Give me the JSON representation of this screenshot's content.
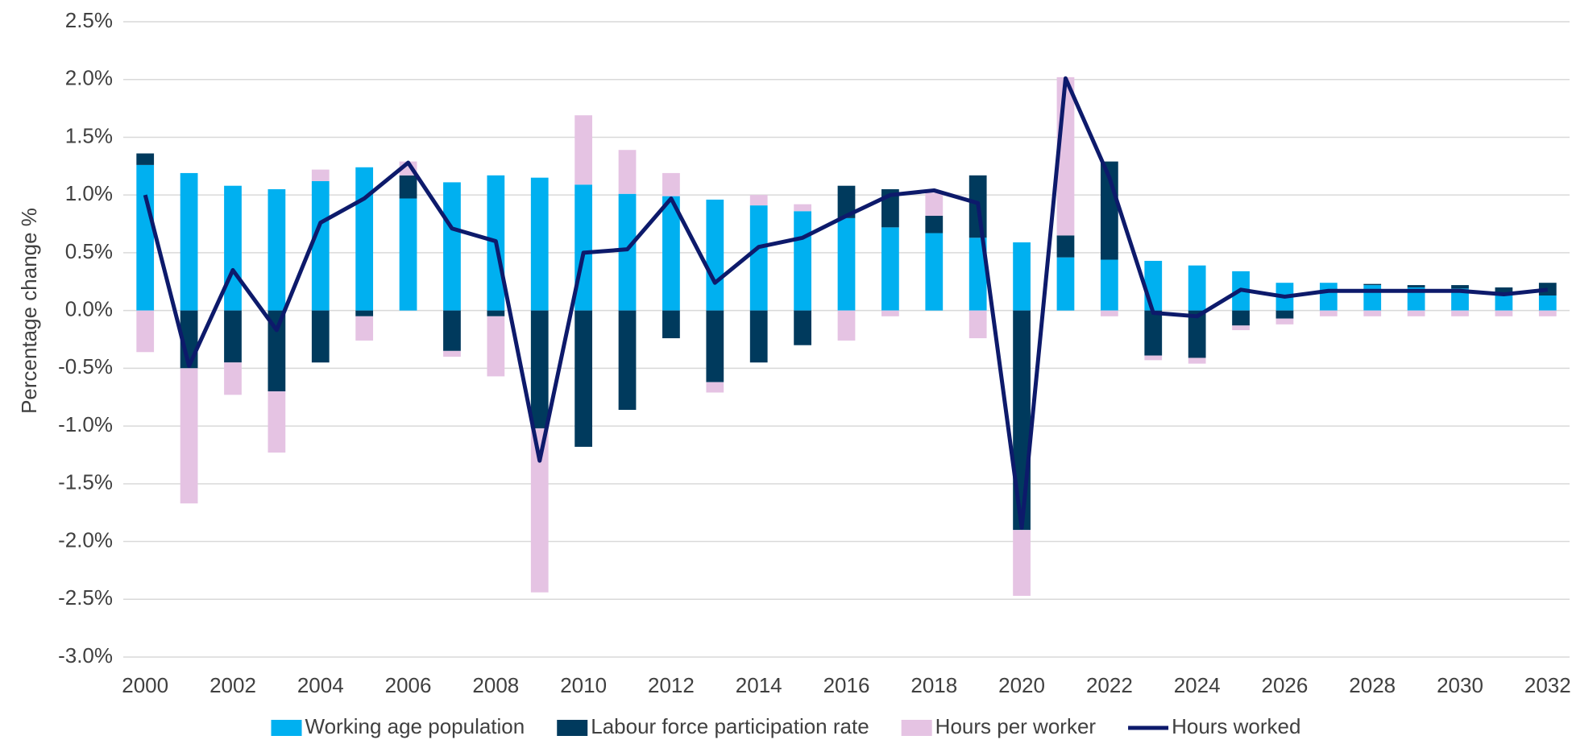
{
  "chart_data": {
    "type": "bar",
    "stacked": true,
    "y_label": "Percentage change %",
    "categories": [
      "2000",
      null,
      "2002",
      null,
      "2004",
      null,
      "2006",
      null,
      "2008",
      null,
      "2010",
      null,
      "2012",
      null,
      "2014",
      null,
      "2016",
      null,
      "2018",
      null,
      "2020",
      null,
      "2022",
      null,
      "2024",
      null,
      "2026",
      null,
      "2028",
      null,
      "2030",
      null,
      "2032"
    ],
    "series": [
      {
        "name": "Working age population",
        "type": "bar",
        "color": "#00b0f0",
        "values": [
          1.26,
          1.19,
          1.08,
          1.05,
          1.12,
          1.24,
          0.97,
          1.11,
          1.17,
          1.15,
          1.09,
          1.01,
          0.99,
          0.96,
          0.91,
          0.86,
          0.8,
          0.72,
          0.67,
          0.63,
          0.59,
          0.46,
          0.44,
          0.43,
          0.39,
          0.34,
          0.24,
          0.24,
          0.22,
          0.2,
          0.19,
          0.15,
          0.13
        ]
      },
      {
        "name": "Labour force participation rate",
        "type": "bar",
        "color": "#003a5d",
        "values": [
          0.1,
          -0.5,
          -0.45,
          -0.7,
          -0.45,
          -0.05,
          0.2,
          -0.35,
          -0.05,
          -1.02,
          -1.18,
          -0.86,
          -0.24,
          -0.62,
          -0.45,
          -0.3,
          0.28,
          0.33,
          0.15,
          0.54,
          -1.9,
          0.19,
          0.85,
          -0.39,
          -0.41,
          -0.13,
          -0.07,
          0.0,
          0.01,
          0.02,
          0.03,
          0.05,
          0.11
        ]
      },
      {
        "name": "Hours per worker",
        "type": "bar",
        "color": "#e5c3e3",
        "values": [
          -0.36,
          -1.17,
          -0.28,
          -0.53,
          0.1,
          -0.21,
          0.12,
          -0.05,
          -0.52,
          -1.42,
          0.6,
          0.38,
          0.2,
          -0.09,
          0.09,
          0.06,
          -0.26,
          -0.05,
          0.2,
          -0.24,
          -0.57,
          1.37,
          -0.05,
          -0.04,
          -0.05,
          -0.04,
          -0.05,
          -0.05,
          -0.05,
          -0.05,
          -0.05,
          -0.05,
          -0.05
        ]
      },
      {
        "name": "Hours worked",
        "type": "line",
        "color": "#0d1a6b",
        "values": [
          1.0,
          -0.48,
          0.35,
          -0.17,
          0.76,
          0.97,
          1.28,
          0.71,
          0.6,
          -1.3,
          0.5,
          0.53,
          0.97,
          0.24,
          0.55,
          0.63,
          0.82,
          1.0,
          1.04,
          0.93,
          -1.88,
          2.01,
          1.15,
          -0.02,
          -0.05,
          0.18,
          0.12,
          0.17,
          0.17,
          0.17,
          0.17,
          0.14,
          0.18
        ]
      }
    ],
    "ylim": [
      -3.0,
      2.5
    ],
    "yticks": [
      {
        "value": -3.0,
        "label": "-3.0%"
      },
      {
        "value": -2.5,
        "label": "-2.5%"
      },
      {
        "value": -2.0,
        "label": "-2.0%"
      },
      {
        "value": -1.5,
        "label": "-1.5%"
      },
      {
        "value": -1.0,
        "label": "-1.0%"
      },
      {
        "value": -0.5,
        "label": "-0.5%"
      },
      {
        "value": 0.0,
        "label": "0.0%"
      },
      {
        "value": 0.5,
        "label": "0.5%"
      },
      {
        "value": 1.0,
        "label": "1.0%"
      },
      {
        "value": 1.5,
        "label": "1.5%"
      },
      {
        "value": 2.0,
        "label": "2.0%"
      },
      {
        "value": 2.5,
        "label": "2.5%"
      }
    ],
    "grid": true,
    "legend": "bottom"
  }
}
